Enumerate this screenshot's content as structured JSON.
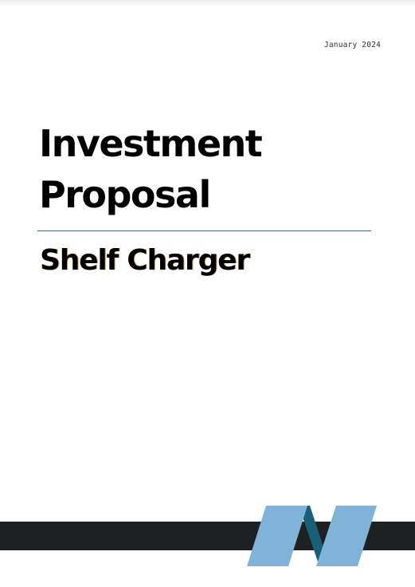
{
  "document": {
    "date": "January 2024",
    "title_lines": [
      "Investment",
      "Proposal"
    ],
    "subtitle": "Shelf Charger"
  },
  "colors": {
    "divider": "#2e6f86",
    "footer_band": "#1e2121",
    "logo_light": "#7fb3d8",
    "logo_dark": "#1a5f78"
  }
}
